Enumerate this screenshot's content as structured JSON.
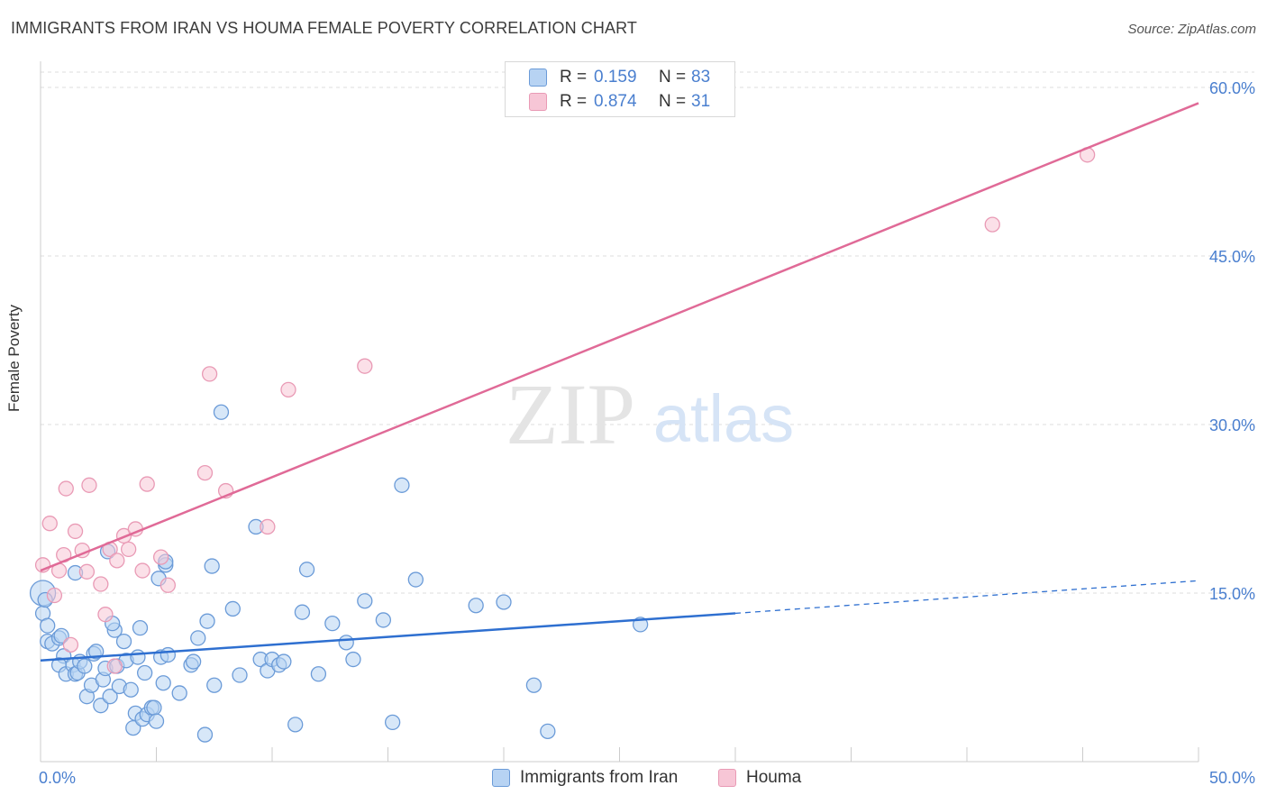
{
  "title": "IMMIGRANTS FROM IRAN VS HOUMA FEMALE POVERTY CORRELATION CHART",
  "source": "Source: ZipAtlas.com",
  "watermark": {
    "zip": "ZIP",
    "atlas": "atlas"
  },
  "legend_top": [
    {
      "r_label": "R =",
      "r_value": "0.159",
      "n_label": "N =",
      "n_value": "83"
    },
    {
      "r_label": "R =",
      "r_value": "0.874",
      "n_label": "N =",
      "n_value": "31"
    }
  ],
  "legend_bottom": [
    "Immigrants from Iran",
    "Houma"
  ],
  "colors": {
    "iran_fill": "#b7d3f3",
    "iran_stroke": "#6b9bd8",
    "iran_line": "#2e6fd0",
    "houma_fill": "#f7c6d6",
    "houma_stroke": "#e99ab5",
    "houma_line": "#e06a97",
    "axis_text": "#4a7fcf",
    "grid": "#dddddd"
  },
  "chart_data": {
    "type": "scatter",
    "title": "IMMIGRANTS FROM IRAN VS HOUMA FEMALE POVERTY CORRELATION CHART",
    "xlabel": "",
    "ylabel": "Female Poverty",
    "xlim": [
      0,
      50
    ],
    "ylim": [
      0,
      60.0
    ],
    "x_tick_labels": [
      "0.0%",
      "50.0%"
    ],
    "y_ticks": [
      {
        "value": 15,
        "label": "15.0%"
      },
      {
        "value": 30,
        "label": "30.0%"
      },
      {
        "value": 45,
        "label": "45.0%"
      },
      {
        "value": 60,
        "label": "60.0%"
      }
    ],
    "series": [
      {
        "name": "Immigrants from Iran",
        "r": 0.159,
        "n": 83,
        "trend": {
          "x0": 0,
          "y0": 9.0,
          "x1": 30,
          "y1": 13.2,
          "dash_to_x": 50,
          "dash_to_y": 16.1
        },
        "points": [
          [
            0.1,
            15.0
          ],
          [
            0.1,
            13.2
          ],
          [
            0.3,
            12.1
          ],
          [
            0.3,
            10.7
          ],
          [
            0.5,
            10.5
          ],
          [
            0.8,
            11.0
          ],
          [
            0.9,
            11.2
          ],
          [
            1.0,
            9.4
          ],
          [
            0.8,
            8.6
          ],
          [
            1.1,
            7.8
          ],
          [
            1.4,
            8.6
          ],
          [
            1.5,
            7.8
          ],
          [
            1.6,
            7.9
          ],
          [
            1.7,
            8.9
          ],
          [
            1.9,
            8.5
          ],
          [
            2.0,
            5.8
          ],
          [
            2.2,
            6.8
          ],
          [
            2.3,
            9.6
          ],
          [
            2.4,
            9.8
          ],
          [
            2.6,
            5.0
          ],
          [
            2.7,
            7.3
          ],
          [
            2.8,
            8.3
          ],
          [
            3.0,
            5.8
          ],
          [
            3.2,
            11.7
          ],
          [
            3.3,
            8.5
          ],
          [
            3.4,
            6.7
          ],
          [
            3.6,
            10.7
          ],
          [
            3.7,
            9.0
          ],
          [
            3.9,
            6.4
          ],
          [
            4.0,
            3.0
          ],
          [
            4.1,
            4.3
          ],
          [
            4.2,
            9.3
          ],
          [
            4.3,
            11.9
          ],
          [
            4.4,
            3.8
          ],
          [
            4.5,
            7.9
          ],
          [
            4.6,
            4.2
          ],
          [
            4.8,
            4.8
          ],
          [
            4.9,
            4.8
          ],
          [
            5.0,
            3.6
          ],
          [
            5.1,
            16.3
          ],
          [
            5.2,
            9.3
          ],
          [
            5.3,
            7.0
          ],
          [
            5.4,
            17.5
          ],
          [
            5.5,
            9.5
          ],
          [
            6.0,
            6.1
          ],
          [
            6.5,
            8.6
          ],
          [
            6.6,
            8.9
          ],
          [
            7.1,
            2.4
          ],
          [
            7.2,
            12.5
          ],
          [
            7.4,
            17.4
          ],
          [
            7.5,
            6.8
          ],
          [
            7.8,
            31.1
          ],
          [
            8.3,
            13.6
          ],
          [
            8.6,
            7.7
          ],
          [
            9.3,
            20.9
          ],
          [
            9.5,
            9.1
          ],
          [
            9.8,
            8.1
          ],
          [
            10.0,
            9.1
          ],
          [
            10.3,
            8.6
          ],
          [
            10.5,
            8.9
          ],
          [
            11.0,
            3.3
          ],
          [
            11.3,
            13.3
          ],
          [
            11.5,
            17.1
          ],
          [
            12.0,
            7.8
          ],
          [
            12.6,
            12.3
          ],
          [
            13.2,
            10.6
          ],
          [
            13.5,
            9.1
          ],
          [
            14.0,
            14.3
          ],
          [
            14.8,
            12.6
          ],
          [
            15.2,
            3.5
          ],
          [
            15.6,
            24.6
          ],
          [
            16.2,
            16.2
          ],
          [
            18.8,
            13.9
          ],
          [
            20.0,
            14.2
          ],
          [
            21.3,
            6.8
          ],
          [
            21.9,
            2.7
          ],
          [
            25.9,
            12.2
          ],
          [
            1.5,
            16.8
          ],
          [
            2.9,
            18.7
          ],
          [
            5.4,
            17.8
          ],
          [
            0.2,
            14.4
          ],
          [
            3.1,
            12.3
          ],
          [
            6.8,
            11.0
          ]
        ]
      },
      {
        "name": "Houma",
        "r": 0.874,
        "n": 31,
        "trend": {
          "x0": 0,
          "y0": 17.0,
          "x1": 50,
          "y1": 58.6
        },
        "points": [
          [
            0.1,
            17.5
          ],
          [
            0.4,
            21.2
          ],
          [
            0.6,
            14.8
          ],
          [
            0.8,
            17.0
          ],
          [
            1.0,
            18.4
          ],
          [
            1.1,
            24.3
          ],
          [
            1.3,
            10.4
          ],
          [
            1.5,
            20.5
          ],
          [
            1.8,
            18.8
          ],
          [
            2.0,
            16.9
          ],
          [
            2.1,
            24.6
          ],
          [
            2.6,
            15.8
          ],
          [
            2.8,
            13.1
          ],
          [
            3.0,
            18.9
          ],
          [
            3.3,
            17.9
          ],
          [
            3.6,
            20.1
          ],
          [
            3.8,
            18.9
          ],
          [
            4.1,
            20.7
          ],
          [
            4.4,
            17.0
          ],
          [
            4.6,
            24.7
          ],
          [
            5.2,
            18.2
          ],
          [
            5.5,
            15.7
          ],
          [
            7.1,
            25.7
          ],
          [
            7.3,
            34.5
          ],
          [
            8.0,
            24.1
          ],
          [
            9.8,
            20.9
          ],
          [
            10.7,
            33.1
          ],
          [
            14.0,
            35.2
          ],
          [
            41.1,
            47.8
          ],
          [
            45.2,
            54.0
          ],
          [
            3.2,
            8.5
          ]
        ]
      }
    ]
  }
}
